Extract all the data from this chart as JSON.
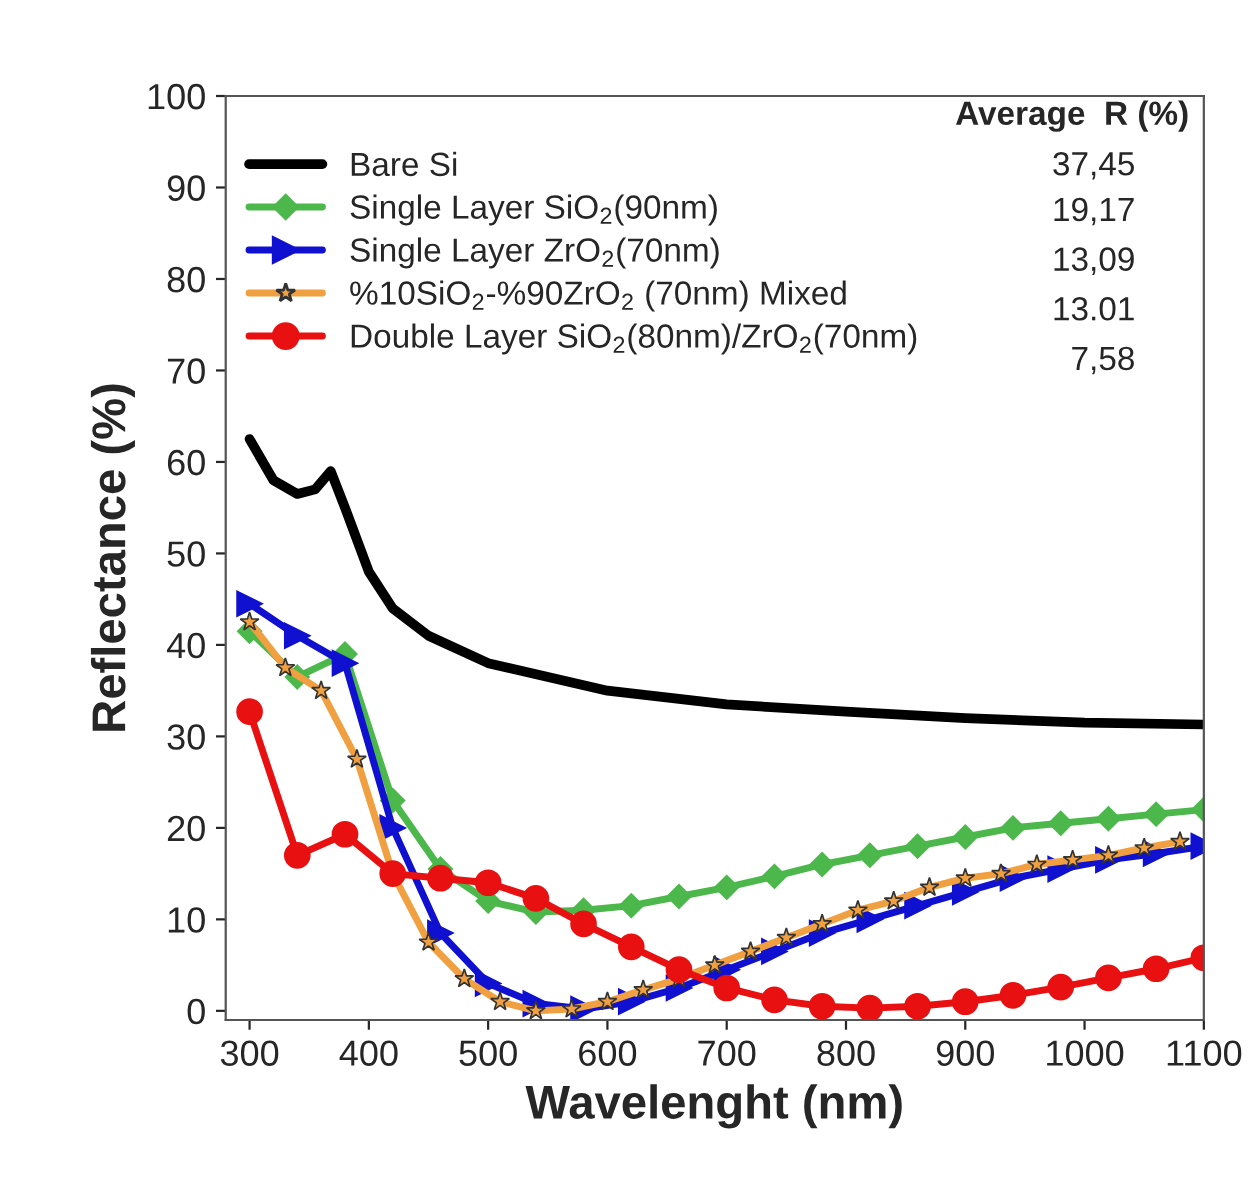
{
  "chart_data": {
    "type": "line",
    "xlabel": "Wavelenght (nm)",
    "ylabel": "Reflectance (%)",
    "xlim": [
      280,
      1100
    ],
    "ylim": [
      -1,
      100
    ],
    "xticks": [
      300,
      400,
      500,
      600,
      700,
      800,
      900,
      1000,
      1100
    ],
    "yticks": [
      0,
      10,
      20,
      30,
      40,
      50,
      60,
      70,
      80,
      90,
      100
    ],
    "grid": false,
    "legend": "top left",
    "legend_title": "Average  R (%)",
    "annotations": [
      "37,45",
      "19,17",
      "13,09",
      "13.01",
      "7,58"
    ],
    "series": [
      {
        "name": "Bare Si",
        "color": "#000000",
        "marker": "none",
        "x": [
          300,
          320,
          340,
          355,
          368,
          380,
          400,
          420,
          450,
          500,
          600,
          700,
          800,
          900,
          1000,
          1100
        ],
        "values": [
          62.5,
          58,
          56.5,
          57,
          59,
          55,
          48,
          44,
          41,
          38,
          35,
          33.5,
          32.7,
          32,
          31.5,
          31.3
        ]
      },
      {
        "name": "Single Layer SiO$_{2}$(90nm)",
        "color": "#4cb84c",
        "marker": "diamond",
        "x": [
          300,
          340,
          380,
          420,
          460,
          500,
          540,
          580,
          620,
          660,
          700,
          740,
          780,
          820,
          860,
          900,
          940,
          980,
          1020,
          1060,
          1100
        ],
        "values": [
          41.5,
          36.5,
          39,
          23,
          15.5,
          12,
          10.8,
          11,
          11.5,
          12.5,
          13.5,
          14.7,
          16,
          17,
          18,
          19,
          20,
          20.5,
          21,
          21.5,
          22
        ]
      },
      {
        "name": "Single Layer ZrO$_{2}$(70nm)",
        "color": "#1010d0",
        "marker": "triangle",
        "x": [
          300,
          340,
          380,
          420,
          460,
          500,
          540,
          580,
          620,
          660,
          700,
          740,
          780,
          820,
          860,
          900,
          940,
          980,
          1020,
          1060,
          1100
        ],
        "values": [
          44.5,
          41,
          38,
          20,
          8.5,
          3,
          0.8,
          0.2,
          1,
          2.5,
          4.5,
          6.5,
          8.5,
          10,
          11.5,
          13,
          14.5,
          15.5,
          16.5,
          17.2,
          18
        ]
      },
      {
        "name": "%10SiO$_{2}$-%90ZrO$_{2}$ (70nm) Mixed",
        "color": "#f0a040",
        "marker": "star",
        "x": [
          300,
          330,
          360,
          390,
          420,
          450,
          480,
          510,
          540,
          570,
          600,
          630,
          660,
          690,
          720,
          750,
          780,
          810,
          840,
          870,
          900,
          930,
          960,
          990,
          1020,
          1050,
          1080
        ],
        "values": [
          42.5,
          37.5,
          35,
          27.5,
          15,
          7.5,
          3.5,
          1,
          0,
          0.2,
          1,
          2.3,
          3.5,
          5,
          6.5,
          8,
          9.5,
          11,
          12,
          13.5,
          14.5,
          15,
          16,
          16.5,
          17,
          17.8,
          18.5
        ]
      },
      {
        "name": "Double Layer SiO$_{2}$(80nm)/ZrO$_{2}$(70nm)",
        "color": "#e81010",
        "marker": "circle",
        "x": [
          300,
          340,
          380,
          420,
          460,
          500,
          540,
          580,
          620,
          660,
          700,
          740,
          780,
          820,
          860,
          900,
          940,
          980,
          1020,
          1060,
          1100
        ],
        "values": [
          32.7,
          17,
          19.3,
          15,
          14.5,
          14,
          12.3,
          9.5,
          7,
          4.5,
          2.5,
          1.2,
          0.5,
          0.3,
          0.5,
          1,
          1.7,
          2.6,
          3.6,
          4.6,
          5.8
        ]
      }
    ]
  }
}
